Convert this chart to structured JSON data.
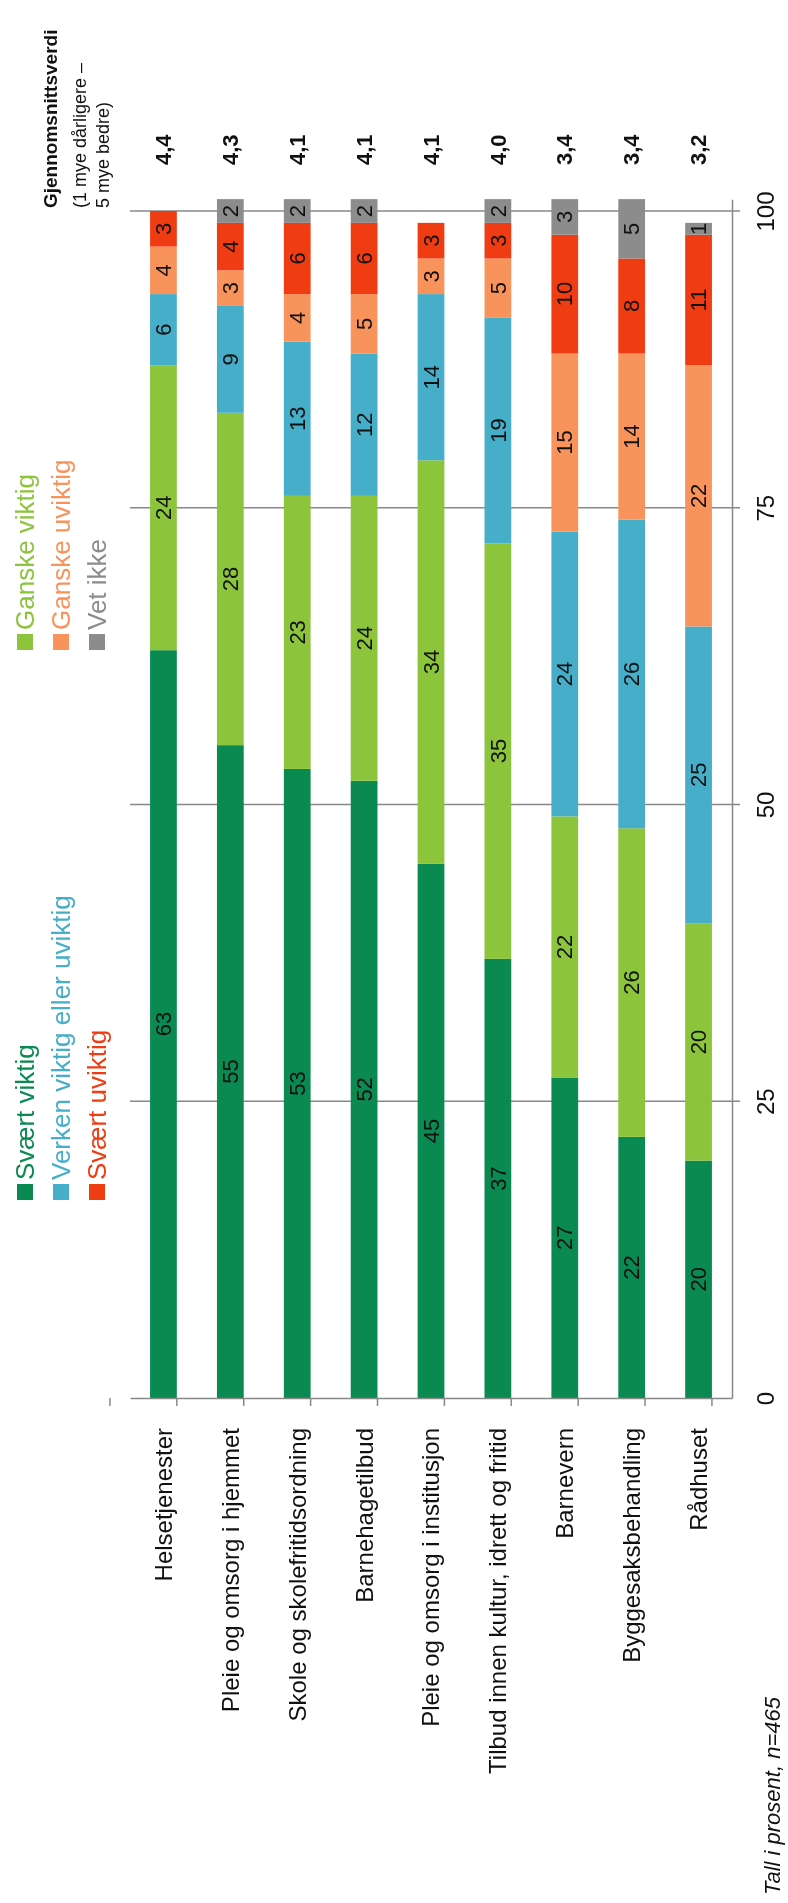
{
  "chart_data": {
    "type": "bar",
    "stacked": true,
    "categories": [
      "Helsetjenester",
      "Pleie og omsorg i hjemmet",
      "Skole og skolefritidsordning",
      "Barnehagetilbud",
      "Pleie og omsorg i institusjon",
      "Tilbud innen kultur, idrett og fritid",
      "Barnevern",
      "Byggesaksbehandling",
      "Rådhuset"
    ],
    "series": [
      {
        "name": "Svært viktig",
        "color": "#0a8a50",
        "values": [
          63,
          55,
          53,
          52,
          45,
          37,
          27,
          22,
          20
        ]
      },
      {
        "name": "Ganske viktig",
        "color": "#8cc43c",
        "values": [
          24,
          28,
          23,
          24,
          34,
          35,
          22,
          26,
          20
        ]
      },
      {
        "name": "Verken viktig eller uviktig",
        "color": "#46aec8",
        "values": [
          6,
          9,
          13,
          12,
          14,
          19,
          24,
          26,
          25
        ]
      },
      {
        "name": "Ganske uviktig",
        "color": "#f9935c",
        "values": [
          4,
          3,
          4,
          5,
          3,
          5,
          15,
          14,
          22
        ]
      },
      {
        "name": "Svært uviktig",
        "color": "#f03c12",
        "values": [
          3,
          4,
          6,
          6,
          3,
          3,
          10,
          8,
          11
        ]
      },
      {
        "name": "Vet ikke",
        "color": "#8c8c8c",
        "values": [
          null,
          2,
          2,
          2,
          null,
          2,
          3,
          5,
          1
        ]
      }
    ],
    "ylim": [
      0,
      101
    ],
    "yticks": [
      0,
      25,
      50,
      75,
      100
    ],
    "grid": "y",
    "legend": "left",
    "data_labels": true,
    "annotations": [
      "Gjennomsnittsverdi",
      "(1 mye dårligere – 5 mye bedre)",
      "4,4",
      "4,3",
      "4,1",
      "4,1",
      "4,1",
      "4,0",
      "3,4",
      "3,4",
      "3,2",
      "Tall i prosent, n=465"
    ]
  }
}
